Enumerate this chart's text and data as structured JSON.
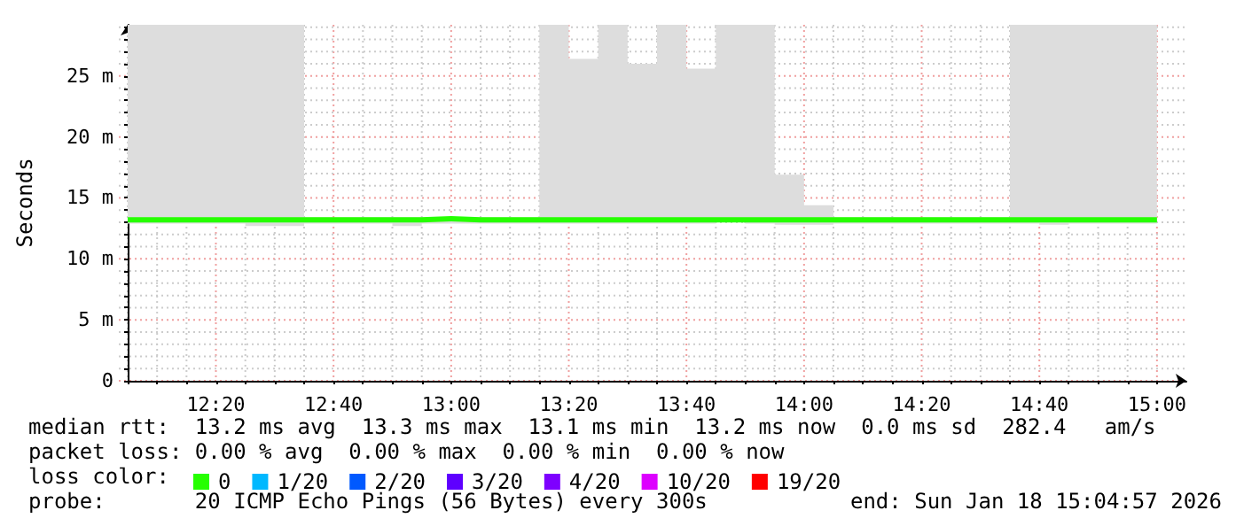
{
  "chart_data": {
    "type": "step",
    "ylabel": "Seconds",
    "legend_title": "loss color:",
    "legend": "bottom",
    "grid": true,
    "x": [
      12.0833,
      12.1667,
      12.25,
      12.3333,
      12.4167,
      12.5,
      12.5833,
      12.6667,
      12.75,
      12.8333,
      12.9167,
      13,
      13.0833,
      13.1667,
      13.25,
      13.3333,
      13.4167,
      13.5,
      13.5833,
      13.6667,
      13.75,
      13.8333,
      13.9167,
      14,
      14.0833,
      14.1667,
      14.25,
      14.3333,
      14.4167,
      14.5,
      14.5833,
      14.6667,
      14.75,
      14.8333,
      14.9167,
      15
    ],
    "xlim": [
      12.0833,
      15.0833
    ],
    "xticks": [
      {
        "value": 12.0833,
        "label": null
      },
      {
        "value": 12.1667,
        "label": null
      },
      {
        "value": 12.25,
        "label": null
      },
      {
        "value": 12.3333,
        "label": "12:20"
      },
      {
        "value": 12.4167,
        "label": null
      },
      {
        "value": 12.5,
        "label": null
      },
      {
        "value": 12.5833,
        "label": null
      },
      {
        "value": 12.6667,
        "label": "12:40"
      },
      {
        "value": 12.75,
        "label": null
      },
      {
        "value": 12.8333,
        "label": null
      },
      {
        "value": 12.9167,
        "label": null
      },
      {
        "value": 13,
        "label": "13:00"
      },
      {
        "value": 13.0833,
        "label": null
      },
      {
        "value": 13.1667,
        "label": null
      },
      {
        "value": 13.25,
        "label": null
      },
      {
        "value": 13.3333,
        "label": "13:20"
      },
      {
        "value": 13.4167,
        "label": null
      },
      {
        "value": 13.5,
        "label": null
      },
      {
        "value": 13.5833,
        "label": null
      },
      {
        "value": 13.6667,
        "label": "13:40"
      },
      {
        "value": 13.75,
        "label": null
      },
      {
        "value": 13.8333,
        "label": null
      },
      {
        "value": 13.9167,
        "label": null
      },
      {
        "value": 14,
        "label": "14:00"
      },
      {
        "value": 14.0833,
        "label": null
      },
      {
        "value": 14.1667,
        "label": null
      },
      {
        "value": 14.25,
        "label": null
      },
      {
        "value": 14.3333,
        "label": "14:20"
      },
      {
        "value": 14.4167,
        "label": null
      },
      {
        "value": 14.5,
        "label": null
      },
      {
        "value": 14.5833,
        "label": null
      },
      {
        "value": 14.6667,
        "label": "14:40"
      },
      {
        "value": 14.75,
        "label": null
      },
      {
        "value": 14.8333,
        "label": null
      },
      {
        "value": 14.9167,
        "label": null
      },
      {
        "value": 15,
        "label": "15:00"
      }
    ],
    "ylim": [
      0,
      29.2
    ],
    "yticks": [
      0,
      {
        "value": 1,
        "label": null
      },
      {
        "value": 2,
        "label": null
      },
      {
        "value": 3,
        "label": null
      },
      {
        "value": 4,
        "label": null
      },
      {
        "value": 5,
        "label": "5 m"
      },
      {
        "value": 6,
        "label": null
      },
      {
        "value": 7,
        "label": null
      },
      {
        "value": 8,
        "label": null
      },
      {
        "value": 9,
        "label": null
      },
      {
        "value": 10,
        "label": "10 m"
      },
      {
        "value": 11,
        "label": null
      },
      {
        "value": 12,
        "label": null
      },
      {
        "value": 13,
        "label": null
      },
      {
        "value": 14,
        "label": null
      },
      {
        "value": 15,
        "label": "15 m"
      },
      {
        "value": 16,
        "label": null
      },
      {
        "value": 17,
        "label": null
      },
      {
        "value": 18,
        "label": null
      },
      {
        "value": 19,
        "label": null
      },
      {
        "value": 20,
        "label": "20 m"
      },
      {
        "value": 21,
        "label": null
      },
      {
        "value": 22,
        "label": null
      },
      {
        "value": 23,
        "label": null
      },
      {
        "value": 24,
        "label": null
      },
      {
        "value": 25,
        "label": "25 m"
      },
      {
        "value": 26,
        "label": null
      },
      {
        "value": 27,
        "label": null
      },
      {
        "value": 28,
        "label": null
      },
      {
        "value": 29,
        "label": null
      }
    ],
    "series": [
      {
        "name": "0",
        "color": "#26ff00",
        "values": [
          13.2,
          13.2,
          13.2,
          13.2,
          13.2,
          13.2,
          13.2,
          13.2,
          13.2,
          13.2,
          13.3,
          13.2,
          13.2,
          13.2,
          13.2,
          13.2,
          13.2,
          13.2,
          13.2,
          13.2,
          13.2,
          13.2,
          13.2,
          13.2,
          13.2,
          13.2,
          13.2,
          13.2,
          13.2,
          13.2,
          13.2,
          13.2,
          13.2,
          13.2,
          13.2,
          13.2
        ],
        "lower": [
          12.9,
          12.9,
          12.9,
          12.9,
          12.7,
          12.7,
          12.9,
          12.9,
          12.9,
          12.7,
          12.9,
          12.9,
          12.9,
          12.9,
          12.9,
          12.9,
          12.9,
          12.9,
          12.9,
          12.9,
          13.0,
          12.9,
          12.8,
          12.8,
          12.9,
          12.9,
          12.9,
          12.9,
          12.9,
          12.9,
          12.9,
          12.8,
          12.9,
          12.9,
          12.9,
          12.9
        ],
        "upper": [
          29.2,
          29.2,
          29.2,
          29.2,
          29.2,
          29.2,
          13.4,
          13.4,
          13.4,
          13.4,
          13.4,
          13.4,
          13.4,
          13.4,
          29.2,
          26.4,
          29.2,
          26.0,
          29.2,
          25.6,
          29.2,
          29.2,
          16.9,
          14.4,
          13.4,
          13.4,
          13.4,
          13.4,
          13.4,
          13.4,
          29.2,
          29.2,
          29.2,
          29.2,
          29.2,
          29.2
        ]
      },
      {
        "name": "1/20",
        "color": "#00b8ff",
        "values": [
          null,
          null,
          null,
          null,
          null,
          null,
          null,
          null,
          null,
          null,
          null,
          null,
          null,
          null,
          null,
          null,
          null,
          null,
          null,
          null,
          null,
          null,
          null,
          null,
          null,
          null,
          null,
          null,
          null,
          null,
          null,
          null,
          null,
          null,
          null,
          null
        ]
      },
      {
        "name": "2/20",
        "color": "#0059ff",
        "values": [
          null,
          null,
          null,
          null,
          null,
          null,
          null,
          null,
          null,
          null,
          null,
          null,
          null,
          null,
          null,
          null,
          null,
          null,
          null,
          null,
          null,
          null,
          null,
          null,
          null,
          null,
          null,
          null,
          null,
          null,
          null,
          null,
          null,
          null,
          null,
          null
        ]
      },
      {
        "name": "3/20",
        "color": "#5e00ff",
        "values": [
          null,
          null,
          null,
          null,
          null,
          null,
          null,
          null,
          null,
          null,
          null,
          null,
          null,
          null,
          null,
          null,
          null,
          null,
          null,
          null,
          null,
          null,
          null,
          null,
          null,
          null,
          null,
          null,
          null,
          null,
          null,
          null,
          null,
          null,
          null,
          null
        ]
      },
      {
        "name": "4/20",
        "color": "#7e00ff",
        "values": [
          null,
          null,
          null,
          null,
          null,
          null,
          null,
          null,
          null,
          null,
          null,
          null,
          null,
          null,
          null,
          null,
          null,
          null,
          null,
          null,
          null,
          null,
          null,
          null,
          null,
          null,
          null,
          null,
          null,
          null,
          null,
          null,
          null,
          null,
          null,
          null
        ]
      },
      {
        "name": "10/20",
        "color": "#dd00ff",
        "values": [
          null,
          null,
          null,
          null,
          null,
          null,
          null,
          null,
          null,
          null,
          null,
          null,
          null,
          null,
          null,
          null,
          null,
          null,
          null,
          null,
          null,
          null,
          null,
          null,
          null,
          null,
          null,
          null,
          null,
          null,
          null,
          null,
          null,
          null,
          null,
          null
        ]
      },
      {
        "name": "19/20",
        "color": "#ff0000",
        "values": [
          null,
          null,
          null,
          null,
          null,
          null,
          null,
          null,
          null,
          null,
          null,
          null,
          null,
          null,
          null,
          null,
          null,
          null,
          null,
          null,
          null,
          null,
          null,
          null,
          null,
          null,
          null,
          null,
          null,
          null,
          null,
          null,
          null,
          null,
          null,
          null
        ]
      }
    ],
    "annotations": [
      "median rtt:  13.2 ms avg  13.3 ms max  13.1 ms min  13.2 ms now  0.0 ms sd  282.4   am/s",
      "packet loss: 0.00 % avg  0.00 % max  0.00 % min  0.00 % now",
      "probe:       20 ICMP Echo Pings (56 Bytes) every 300s",
      "end: Sun Jan 18 15:04:57 2026"
    ]
  }
}
